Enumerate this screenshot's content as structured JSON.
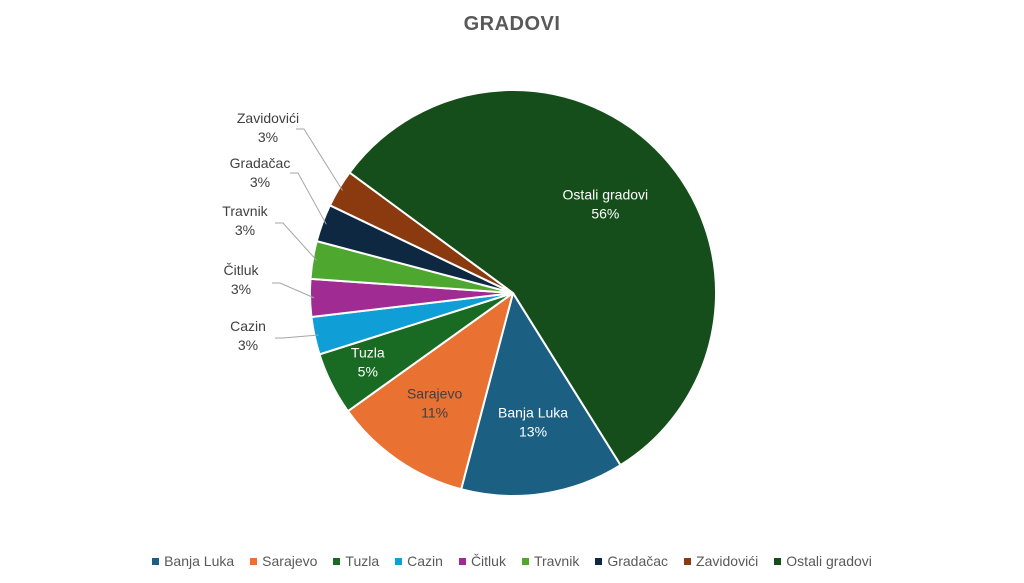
{
  "chart_data": {
    "type": "pie",
    "title": "GRADOVI",
    "categories": [
      "Banja Luka",
      "Sarajevo",
      "Tuzla",
      "Cazin",
      "Čitluk",
      "Travnik",
      "Gradačac",
      "Zavidovići",
      "Ostali gradovi"
    ],
    "values": [
      13,
      11,
      5,
      3,
      3,
      3,
      3,
      3,
      56
    ],
    "value_labels": [
      "13%",
      "11%",
      "5%",
      "3%",
      "3%",
      "3%",
      "3%",
      "3%",
      "56%"
    ],
    "colors": [
      "#1b5f83",
      "#e97132",
      "#196b24",
      "#0f9ed5",
      "#a02b93",
      "#4ea72e",
      "#0e2841",
      "#8b3a0f",
      "#154e1a"
    ],
    "legend_position": "bottom"
  }
}
